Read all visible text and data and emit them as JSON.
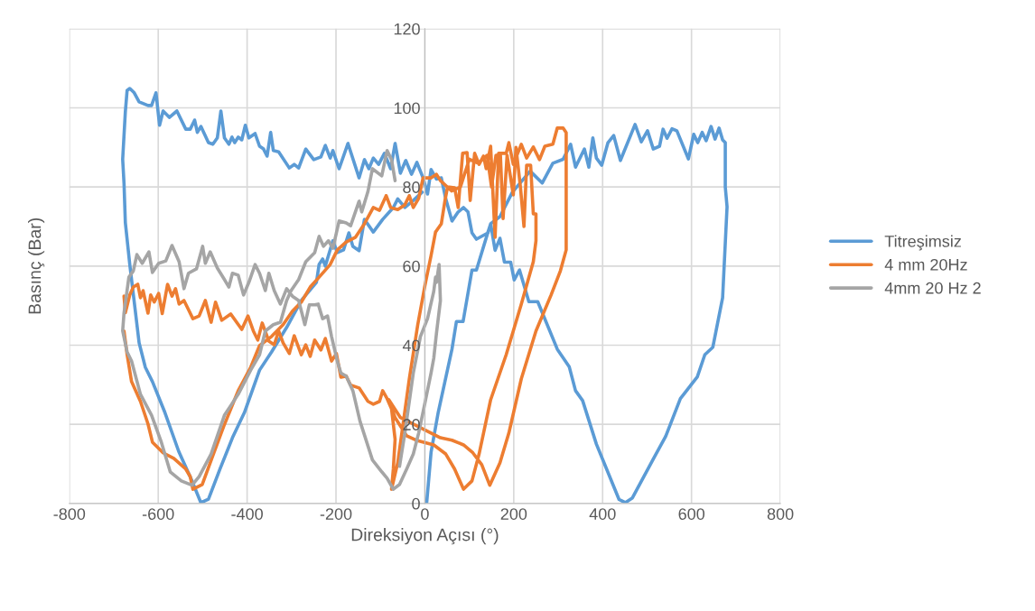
{
  "chart_data": {
    "type": "line",
    "xlabel": "Direksiyon Açısı (°)",
    "ylabel": "Basınç (Bar)",
    "xlim": [
      -800,
      800
    ],
    "xticks": [
      -800,
      -600,
      -400,
      -200,
      0,
      200,
      400,
      600,
      800
    ],
    "ylim": [
      0,
      120
    ],
    "yticks": [
      0,
      20,
      40,
      60,
      80,
      100,
      120
    ],
    "grid": true,
    "legend": "right",
    "series": [
      {
        "name": "Titreşimsiz",
        "color": "#5b9bd5",
        "x": [
          4,
          14,
          30,
          61,
          71,
          86,
          106,
          116,
          142,
          148,
          169,
          197,
          237,
          264,
          288,
          311,
          328,
          339,
          359,
          369,
          378,
          386,
          398,
          412,
          425,
          440,
          473,
          487,
          501,
          514,
          528,
          536,
          545,
          556,
          567,
          593,
          605,
          614,
          624,
          633,
          644,
          653,
          662,
          670,
          676,
          676,
          680,
          670,
          648,
          630,
          613,
          575,
          542,
          508,
          467,
          451,
          437,
          386,
          355,
          339,
          325,
          298,
          254,
          234,
          213,
          201,
          193,
          179,
          169,
          158,
          148,
          142,
          116,
          106,
          97,
          87,
          75,
          61,
          47,
          37,
          26,
          14,
          6,
          -4,
          -18,
          -30,
          -43,
          -55,
          -67,
          -77,
          -91,
          -104,
          -116,
          -126,
          -136,
          -148,
          -173,
          -193,
          -207,
          -213,
          -224,
          -234,
          -250,
          -268,
          -284,
          -294,
          -305,
          -329,
          -341,
          -347,
          -355,
          -363,
          -372,
          -382,
          -396,
          -404,
          -412,
          -420,
          -428,
          -434,
          -441,
          -451,
          -459,
          -467,
          -477,
          -487,
          -504,
          -512,
          -518,
          -528,
          -538,
          -558,
          -575,
          -589,
          -597,
          -605,
          -615,
          -623,
          -643,
          -654,
          -664,
          -670,
          -674,
          -680,
          -677,
          -674,
          -664,
          -643,
          -629,
          -613,
          -585,
          -554,
          -524,
          -504,
          -487,
          -461,
          -433,
          -406,
          -372,
          -345,
          -311,
          -278,
          -244,
          -238,
          -230,
          -224,
          -207,
          -197,
          -183,
          -171,
          -162,
          -148,
          -136,
          -116,
          -95,
          -71,
          -61,
          -45,
          -26,
          -6
        ],
        "values": [
          0,
          13,
          23,
          39,
          46,
          46,
          59,
          59,
          68.6,
          70.7,
          72.5,
          78.7,
          84,
          81,
          86,
          87,
          90.8,
          85,
          89.6,
          85,
          92.4,
          87.3,
          85.5,
          91.2,
          93,
          86.7,
          95.8,
          91.4,
          94.2,
          89.6,
          90.3,
          94.6,
          92.3,
          94.7,
          94.2,
          87.1,
          93.3,
          91.2,
          93.8,
          91.7,
          95.3,
          92.1,
          94.9,
          91.9,
          91.2,
          80,
          75,
          52,
          39.5,
          37.6,
          32,
          26.5,
          17,
          10,
          1.4,
          0.2,
          1,
          15,
          26,
          28.5,
          34.5,
          39,
          51,
          51,
          59,
          56.5,
          61,
          61,
          67,
          64,
          70.7,
          68.4,
          66.8,
          68.4,
          73.7,
          74.8,
          73.7,
          71.4,
          77,
          82.3,
          82,
          84.4,
          78.2,
          82.3,
          86.2,
          83.2,
          86.7,
          83.5,
          91,
          84.6,
          88.5,
          85.7,
          87.3,
          84.6,
          86.9,
          82.3,
          91,
          84.6,
          89.2,
          87.3,
          90.5,
          87.6,
          86.9,
          89.6,
          84.8,
          85.7,
          84.8,
          88.9,
          89.2,
          93.8,
          87.8,
          89.6,
          90.3,
          93.5,
          92.4,
          95.6,
          91.9,
          92.6,
          91.2,
          92.6,
          90.8,
          92.4,
          99.2,
          92.4,
          90.8,
          91.2,
          95.3,
          93.8,
          96.9,
          94.6,
          94.6,
          99.2,
          97.6,
          99.2,
          95.6,
          103.8,
          100.6,
          100.6,
          101.5,
          103.8,
          104.9,
          104.4,
          99,
          87,
          81,
          71,
          60.4,
          40.6,
          34.4,
          30.8,
          23,
          13.2,
          5.7,
          0.2,
          1.1,
          8.7,
          16.6,
          23,
          33.7,
          38.3,
          44.5,
          51.3,
          55.9,
          60.4,
          61.8,
          60,
          66.4,
          63.4,
          64.1,
          68.4,
          65,
          63.9,
          71.8,
          68.6,
          71.8,
          74.8,
          77,
          74.8,
          76.6,
          78.7
        ]
      },
      {
        "name": "4 mm 20Hz",
        "color": "#ed7d31",
        "x": [
          -677,
          -674,
          -664,
          -656,
          -646,
          -640,
          -634,
          -623,
          -617,
          -609,
          -599,
          -591,
          -579,
          -569,
          -561,
          -553,
          -542,
          -532,
          -522,
          -508,
          -494,
          -481,
          -471,
          -457,
          -437,
          -412,
          -398,
          -386,
          -376,
          -366,
          -351,
          -339,
          -329,
          -319,
          -305,
          -294,
          -278,
          -268,
          -258,
          -248,
          -234,
          -224,
          -210,
          -199,
          -189,
          -177,
          -167,
          -148,
          -128,
          -116,
          -102,
          -95,
          -85,
          -75,
          -67,
          -71,
          -75,
          -61,
          -35,
          -16,
          0,
          14,
          24,
          37,
          45,
          51,
          67,
          75,
          85,
          95,
          102,
          112,
          122,
          132,
          138,
          148,
          158,
          166,
          183,
          189,
          199,
          217,
          229,
          244,
          258,
          270,
          288,
          298,
          311,
          318,
          318,
          305,
          284,
          250,
          217,
          189,
          169,
          146,
          128,
          108,
          87,
          61,
          35,
          14,
          -14,
          -55,
          -81,
          -67,
          -41,
          -20,
          20,
          47,
          67,
          87,
          106,
          122,
          148,
          183,
          217,
          244,
          250,
          250,
          244,
          238,
          229,
          223,
          215,
          205,
          199,
          185,
          176,
          170,
          160,
          150,
          140,
          120,
          100,
          80,
          60,
          35,
          26,
          14,
          -4,
          -14,
          -26,
          -35,
          -45,
          -61,
          -77,
          -87,
          -102,
          -116,
          -136,
          -156,
          -177,
          -197,
          -213,
          -238,
          -258,
          -278,
          -298,
          -319,
          -345,
          -372,
          -392,
          -420,
          -453,
          -481,
          -501,
          -522,
          -528,
          -538,
          -565,
          -589,
          -613,
          -623,
          -640,
          -660,
          -670,
          -677
        ],
        "values": [
          52.4,
          48.2,
          52.7,
          54.7,
          55.4,
          52,
          53.8,
          48.1,
          52.7,
          50.9,
          53.1,
          48,
          55.4,
          52.4,
          54.3,
          50.4,
          51.3,
          49,
          46.7,
          47.4,
          51.3,
          45.8,
          50.9,
          46.3,
          47.9,
          44,
          47.4,
          43.6,
          41.3,
          45.6,
          41,
          40.1,
          43.6,
          40.6,
          37.9,
          42.4,
          37.6,
          40.1,
          37.2,
          41.3,
          38.8,
          41.7,
          36,
          37.9,
          31.9,
          32.2,
          29.9,
          29.2,
          25.8,
          25.1,
          25.8,
          28.5,
          26.5,
          23.9,
          16.2,
          8.7,
          3.6,
          10.3,
          31.5,
          45.2,
          55,
          62.7,
          68.6,
          70.7,
          76.4,
          80,
          79.8,
          74.8,
          88.5,
          88.7,
          76.6,
          88.5,
          85.7,
          87.8,
          84.6,
          90.3,
          67.3,
          88.5,
          88.5,
          91.2,
          85.7,
          90.8,
          87.3,
          90.1,
          86.9,
          90.3,
          90.8,
          94.9,
          94.9,
          93.7,
          64.1,
          58.8,
          52.7,
          43.6,
          31.5,
          17.8,
          10.3,
          4.6,
          9.8,
          12.8,
          14.8,
          16,
          16.6,
          17.8,
          19.4,
          21.7,
          26.2,
          21.7,
          17.1,
          16,
          14.8,
          12.5,
          8.7,
          3.6,
          5.7,
          12.5,
          26.2,
          37.6,
          50.4,
          61.1,
          66.4,
          73.2,
          73.2,
          85.5,
          85.5,
          70,
          80,
          90,
          78,
          88,
          72,
          88,
          88,
          80,
          88,
          86,
          87,
          80,
          79,
          81.6,
          83.2,
          82.3,
          82.3,
          77.1,
          74.8,
          77.8,
          75.5,
          74.3,
          74.8,
          77.8,
          74.1,
          74.8,
          70.7,
          67.3,
          66.1,
          64.1,
          60.4,
          57.2,
          54.7,
          50.9,
          48.6,
          45.2,
          42.2,
          39.9,
          34.4,
          28.5,
          19.4,
          10.9,
          4.8,
          3.6,
          6.8,
          8.7,
          11.4,
          12.8,
          15.5,
          20.1,
          25.8,
          30.8,
          37.6,
          43.6
        ]
      },
      {
        "name": "4mm 20 Hz 2",
        "color": "#a5a5a5",
        "x": [
          -67,
          -75,
          -85,
          -97,
          -118,
          -128,
          -142,
          -148,
          -167,
          -177,
          -193,
          -207,
          -217,
          -228,
          -238,
          -248,
          -268,
          -284,
          -301,
          -311,
          -325,
          -341,
          -359,
          -372,
          -392,
          -420,
          -451,
          -481,
          -508,
          -524,
          -548,
          -573,
          -593,
          -615,
          -640,
          -660,
          -670,
          -680,
          -677,
          -666,
          -656,
          -648,
          -636,
          -621,
          -613,
          -599,
          -583,
          -569,
          -553,
          -542,
          -532,
          -514,
          -500,
          -494,
          -483,
          -467,
          -451,
          -441,
          -433,
          -420,
          -408,
          -396,
          -382,
          -372,
          -359,
          -351,
          -339,
          -325,
          -311,
          -298,
          -284,
          -270,
          -260,
          -248,
          -240,
          -230,
          -219,
          -210,
          -197,
          -189,
          -177,
          -162,
          -146,
          -118,
          -97,
          -85,
          -71,
          -57,
          -41,
          -26,
          -14,
          0,
          14,
          20,
          26,
          35,
          32,
          26,
          24,
          20,
          6,
          -10,
          -26,
          -45,
          -57
        ],
        "values": [
          81.6,
          86.9,
          89.2,
          82.8,
          84.6,
          78.9,
          73.7,
          76.4,
          70.2,
          70.9,
          71.4,
          64.5,
          66.4,
          65,
          67.5,
          63.4,
          61.1,
          56.6,
          53.8,
          51.3,
          45.8,
          45.2,
          43.6,
          37.6,
          33.7,
          27.6,
          22.3,
          12.5,
          6.8,
          4.6,
          5.7,
          8,
          15.5,
          22.3,
          27.6,
          36,
          38.3,
          43.6,
          48.1,
          57.2,
          58.8,
          62.9,
          60.7,
          63.6,
          58.4,
          60.7,
          61.3,
          65.2,
          61.1,
          54.3,
          58.2,
          59.3,
          65,
          60.7,
          63.6,
          59.5,
          56.6,
          54.7,
          58.2,
          57.7,
          52.7,
          55.9,
          60.4,
          58.2,
          53.8,
          58.2,
          53.8,
          50.4,
          54.3,
          52.4,
          51.3,
          45.2,
          50.2,
          50.2,
          50.4,
          46.7,
          47.4,
          42.2,
          36,
          33,
          32.2,
          28.5,
          20.8,
          11,
          8,
          6.4,
          3.6,
          4.8,
          8.7,
          12.5,
          17.8,
          25.3,
          33,
          36.7,
          42.9,
          51.3,
          60.4,
          55.9,
          57.2,
          53.6,
          46.7,
          42.2,
          33,
          17.8,
          9.4
        ]
      }
    ]
  }
}
